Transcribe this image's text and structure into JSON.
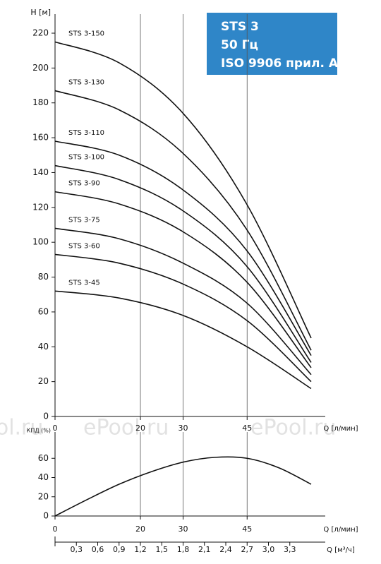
{
  "chart_data": [
    {
      "type": "line",
      "title_lines": [
        "STS 3",
        "50 Гц",
        "ISO 9906 прил. A"
      ],
      "ylabel": "H [м]",
      "xlabel": "Q [л/мин]",
      "x": [
        0,
        15,
        30,
        45,
        60
      ],
      "xlim": [
        0,
        60
      ],
      "xticks": [
        0,
        20,
        30,
        45
      ],
      "ylim": [
        0,
        220
      ],
      "yticks": [
        0,
        20,
        40,
        60,
        80,
        100,
        120,
        140,
        160,
        180,
        200,
        220
      ],
      "grid": "x",
      "series": [
        {
          "name": "STS 3-150",
          "color": "#111111",
          "values": [
            215,
            203,
            174,
            121.5,
            45
          ]
        },
        {
          "name": "STS 3-130",
          "color": "#111111",
          "values": [
            187,
            176,
            151,
            107,
            38
          ]
        },
        {
          "name": "STS 3-110",
          "color": "#111111",
          "values": [
            158,
            150,
            130,
            95,
            35
          ]
        },
        {
          "name": "STS 3-100",
          "color": "#111111",
          "values": [
            144,
            136,
            118,
            86,
            31
          ]
        },
        {
          "name": "STS 3-90",
          "color": "#111111",
          "values": [
            129,
            122,
            106,
            77,
            28
          ]
        },
        {
          "name": "STS 3-75",
          "color": "#111111",
          "values": [
            108,
            102,
            88,
            65,
            24
          ]
        },
        {
          "name": "STS 3-60",
          "color": "#111111",
          "values": [
            93,
            88,
            76,
            55,
            20
          ]
        },
        {
          "name": "STS 3-45",
          "color": "#111111",
          "values": [
            72,
            68,
            58,
            40,
            16
          ]
        }
      ]
    },
    {
      "type": "line",
      "ylabel": "КПД (%)",
      "xlabel": "Q [л/мин]",
      "x": [
        0,
        7.5,
        15,
        22.5,
        30,
        37.5,
        45,
        52.5,
        60
      ],
      "xlim": [
        0,
        60
      ],
      "xticks": [
        0,
        20,
        30,
        45
      ],
      "ylim": [
        0,
        80
      ],
      "yticks": [
        0,
        20,
        40,
        60
      ],
      "grid": "x",
      "series": [
        {
          "color": "#111111",
          "values": [
            0,
            17,
            33,
            46,
            56,
            61,
            60,
            50,
            33
          ]
        }
      ],
      "x2label": "Q [м³/ч]",
      "x2lim": [
        0,
        3.6
      ],
      "x2ticks": [
        {
          "value": 0.3,
          "label": "0,3"
        },
        {
          "value": 0.6,
          "label": "0,6"
        },
        {
          "value": 0.9,
          "label": "0,9"
        },
        {
          "value": 1.2,
          "label": "1,2"
        },
        {
          "value": 1.5,
          "label": "1,5"
        },
        {
          "value": 1.8,
          "label": "1,8"
        },
        {
          "value": 2.1,
          "label": "2,1"
        },
        {
          "value": 2.4,
          "label": "2,4"
        },
        {
          "value": 2.7,
          "label": "2,7"
        },
        {
          "value": 3.0,
          "label": "3,0"
        },
        {
          "value": 3.3,
          "label": "3,3"
        }
      ]
    }
  ],
  "watermarks": [
    "ePool.ru",
    "ePool.ru",
    "ePool.ru"
  ]
}
